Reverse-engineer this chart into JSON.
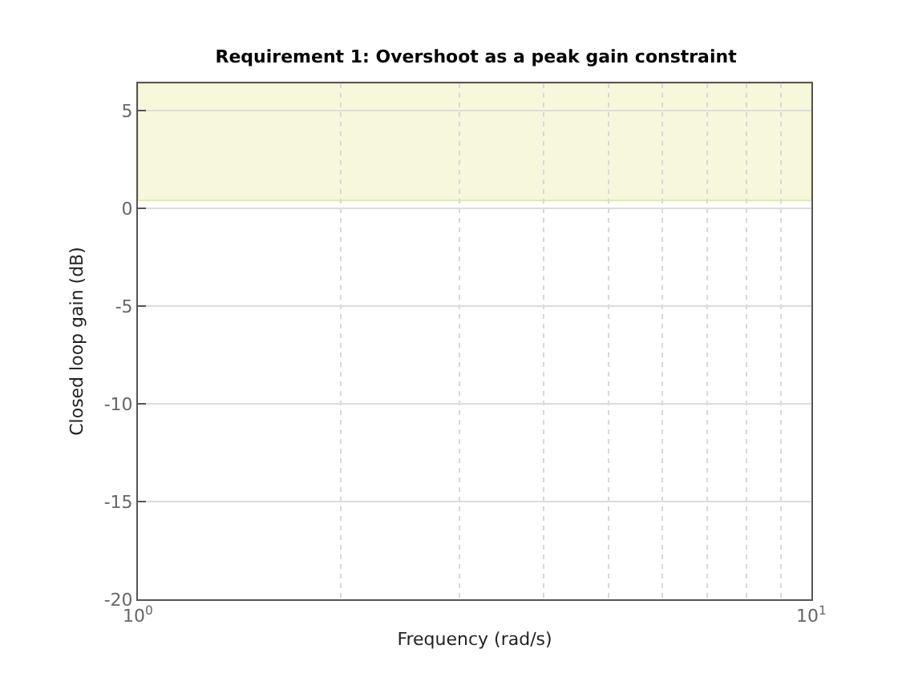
{
  "chart_data": {
    "type": "line",
    "title": "Requirement 1: Overshoot as a peak gain constraint",
    "xlabel": "Frequency (rad/s)",
    "ylabel": "Closed loop gain (dB)",
    "log": "x",
    "xlim": [
      1,
      10
    ],
    "xticks": [
      {
        "value": 1,
        "label": "10$^{0}$"
      },
      {
        "value": 2,
        "label": null
      },
      {
        "value": 3,
        "label": null
      },
      {
        "value": 4,
        "label": null
      },
      {
        "value": 5,
        "label": null
      },
      {
        "value": 6,
        "label": null
      },
      {
        "value": 7,
        "label": null
      },
      {
        "value": 8,
        "label": null
      },
      {
        "value": 9,
        "label": null
      },
      {
        "value": 10,
        "label": "10$^{1}$"
      }
    ],
    "ylim": [
      -20,
      6.4
    ],
    "yticks": [
      -20,
      -15,
      -10,
      -5,
      0,
      5
    ],
    "grid": true,
    "bands": [
      {
        "axis": "y",
        "from": 0.4,
        "to": 6.4,
        "color": "#f7f7dc"
      }
    ]
  }
}
